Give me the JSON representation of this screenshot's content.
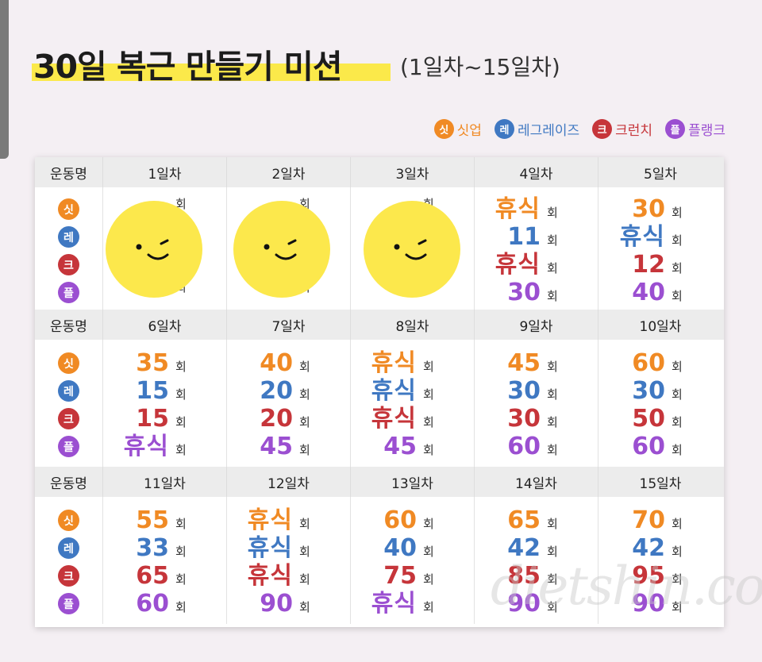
{
  "title": "30일 복근 만들기 미션",
  "subtitle": "(1일차~15일차)",
  "legend": [
    {
      "icon": "싯",
      "label": "싯업",
      "color": "#f08a24"
    },
    {
      "icon": "레",
      "label": "레그레이즈",
      "color": "#3f78c2"
    },
    {
      "icon": "크",
      "label": "크런치",
      "color": "#c6353a"
    },
    {
      "icon": "플",
      "label": "플랭크",
      "color": "#9b4fd1"
    }
  ],
  "table": {
    "row_header": "운동명",
    "unit": "회",
    "bands": [
      {
        "days": [
          {
            "label": "1일차",
            "values": [
              "",
              "",
              "",
              ""
            ]
          },
          {
            "label": "2일차",
            "values": [
              "",
              "",
              "",
              ""
            ]
          },
          {
            "label": "3일차",
            "values": [
              "",
              "",
              "",
              ""
            ]
          },
          {
            "label": "4일차",
            "values": [
              "휴식",
              "11",
              "휴식",
              "30"
            ]
          },
          {
            "label": "5일차",
            "values": [
              "30",
              "휴식",
              "12",
              "40"
            ]
          }
        ]
      },
      {
        "days": [
          {
            "label": "6일차",
            "values": [
              "35",
              "15",
              "15",
              "휴식"
            ]
          },
          {
            "label": "7일차",
            "values": [
              "40",
              "20",
              "20",
              "45"
            ]
          },
          {
            "label": "8일차",
            "values": [
              "휴식",
              "휴식",
              "휴식",
              "45"
            ]
          },
          {
            "label": "9일차",
            "values": [
              "45",
              "30",
              "30",
              "60"
            ]
          },
          {
            "label": "10일차",
            "values": [
              "60",
              "30",
              "50",
              "60"
            ]
          }
        ]
      },
      {
        "days": [
          {
            "label": "11일차",
            "values": [
              "55",
              "33",
              "65",
              "60"
            ]
          },
          {
            "label": "12일차",
            "values": [
              "휴식",
              "휴식",
              "휴식",
              "90"
            ]
          },
          {
            "label": "13일차",
            "values": [
              "60",
              "40",
              "75",
              "휴식"
            ]
          },
          {
            "label": "14일차",
            "values": [
              "65",
              "42",
              "85",
              "90"
            ]
          },
          {
            "label": "15일차",
            "values": [
              "70",
              "42",
              "95",
              "90"
            ]
          }
        ]
      }
    ]
  },
  "watermark": "dietshin.com"
}
